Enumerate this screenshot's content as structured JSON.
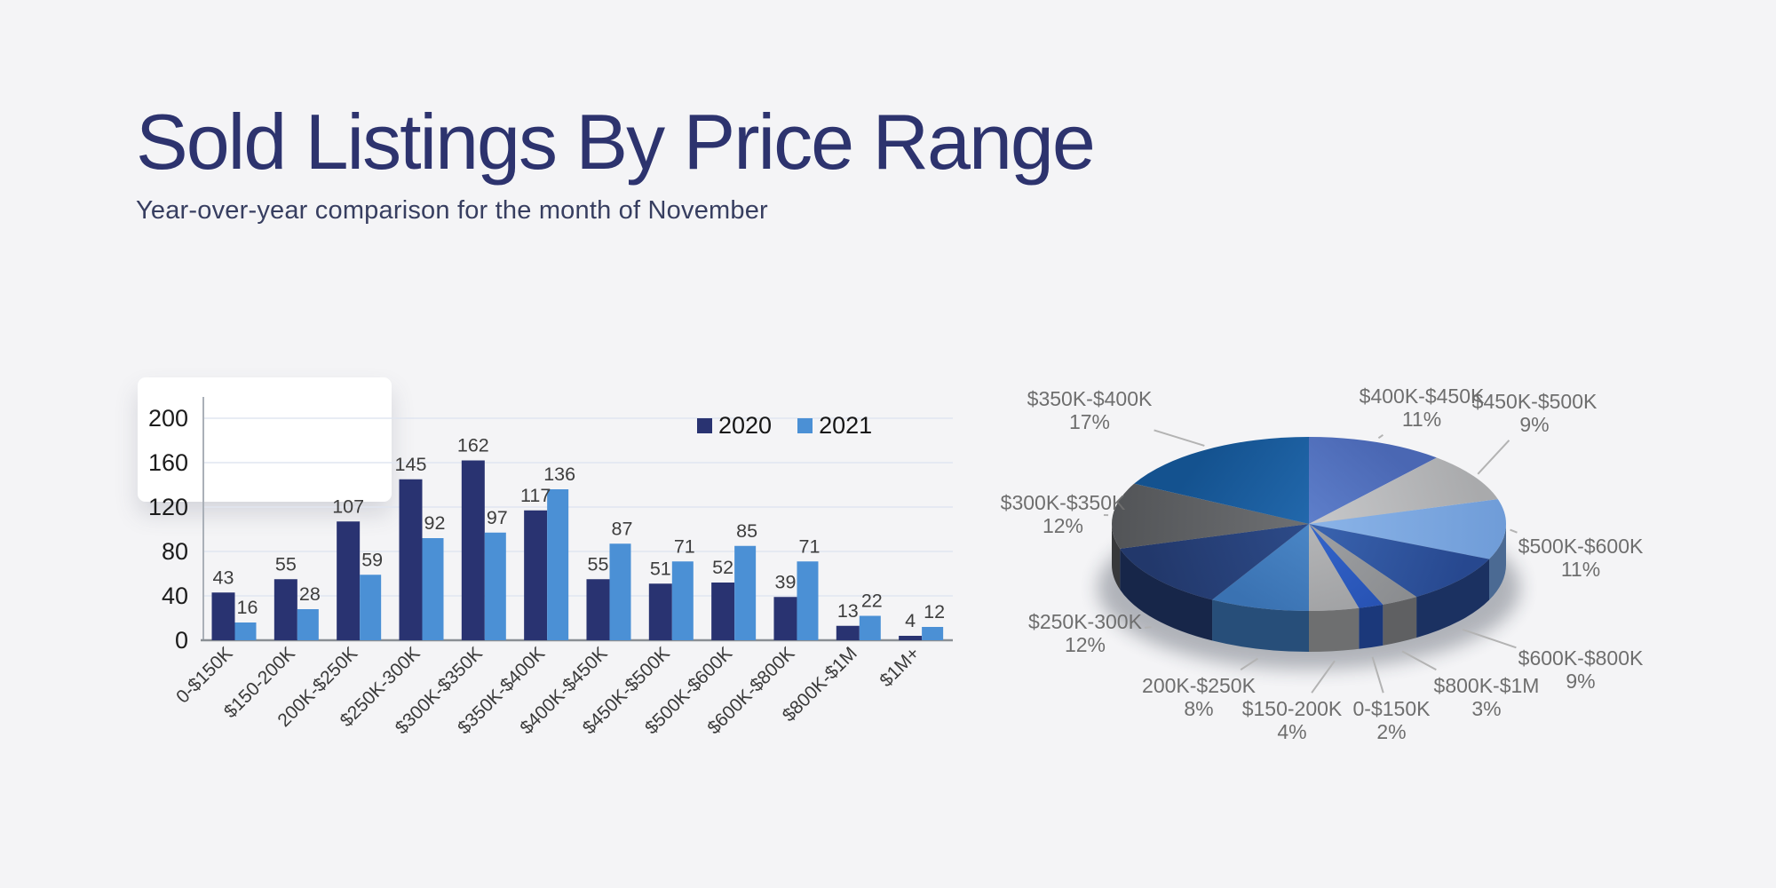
{
  "header": {
    "title": "Sold Listings By Price Range",
    "subtitle": "Year-over-year comparison for the month of November"
  },
  "chart_data": [
    {
      "type": "bar",
      "title": "",
      "xlabel": "",
      "ylabel": "",
      "ylim": [
        0,
        200
      ],
      "yticks": [
        0,
        40,
        80,
        120,
        160,
        200
      ],
      "grid": true,
      "legend_position": "top-right",
      "categories": [
        "0-$150K",
        "$150-200K",
        "200K-$250K",
        "$250K-300K",
        "$300K-$350K",
        "$350K-$400K",
        "$400K-$450K",
        "$450K-$500K",
        "$500K-$600K",
        "$600K-$800K",
        "$800K-$1M",
        "$1M+"
      ],
      "series": [
        {
          "name": "2020",
          "color": "#293371",
          "values": [
            43,
            55,
            107,
            145,
            162,
            117,
            55,
            51,
            52,
            39,
            13,
            4
          ]
        },
        {
          "name": "2021",
          "color": "#4b90d5",
          "values": [
            16,
            28,
            59,
            92,
            97,
            136,
            87,
            71,
            85,
            71,
            22,
            12
          ]
        }
      ]
    },
    {
      "type": "pie",
      "style": "3d",
      "start_angle_deg": -90,
      "direction": "clockwise",
      "unit": "%",
      "slices": [
        {
          "label": "$400K-$450K",
          "pct": "11%",
          "value": 11,
          "color_in": "#5e7fcb",
          "color_out": "#4a67b3"
        },
        {
          "label": "$450K-$500K",
          "pct": "9%",
          "value": 9,
          "color_in": "#c7c8ca",
          "color_out": "#a9aaac"
        },
        {
          "label": "$500K-$600K",
          "pct": "11%",
          "value": 11,
          "color_in": "#8bb4e8",
          "color_out": "#6f9cd8"
        },
        {
          "label": "$600K-$800K",
          "pct": "9%",
          "value": 9,
          "color_in": "#3a64b0",
          "color_out": "#27488f"
        },
        {
          "label": "$800K-$1M",
          "pct": "3%",
          "value": 3,
          "color_in": "#9fa1a4",
          "color_out": "#8b8d90"
        },
        {
          "label": "0-$150K",
          "pct": "2%",
          "value": 2,
          "color_in": "#3365cc",
          "color_out": "#2853b4"
        },
        {
          "label": "$150-200K",
          "pct": "4%",
          "value": 4,
          "color_in": "#b4b5b7",
          "color_out": "#a2a3a5"
        },
        {
          "label": "200K-$250K",
          "pct": "8%",
          "value": 8,
          "color_in": "#4a86c6",
          "color_out": "#3a72b2"
        },
        {
          "label": "$250K-300K",
          "pct": "12%",
          "value": 12,
          "color_in": "#2d4b89",
          "color_out": "#22386b"
        },
        {
          "label": "$300K-$350K",
          "pct": "12%",
          "value": 12,
          "color_in": "#6e7073",
          "color_out": "#525457"
        },
        {
          "label": "$350K-$400K",
          "pct": "17%",
          "value": 17,
          "color_in": "#2268ac",
          "color_out": "#14528f"
        }
      ]
    }
  ]
}
